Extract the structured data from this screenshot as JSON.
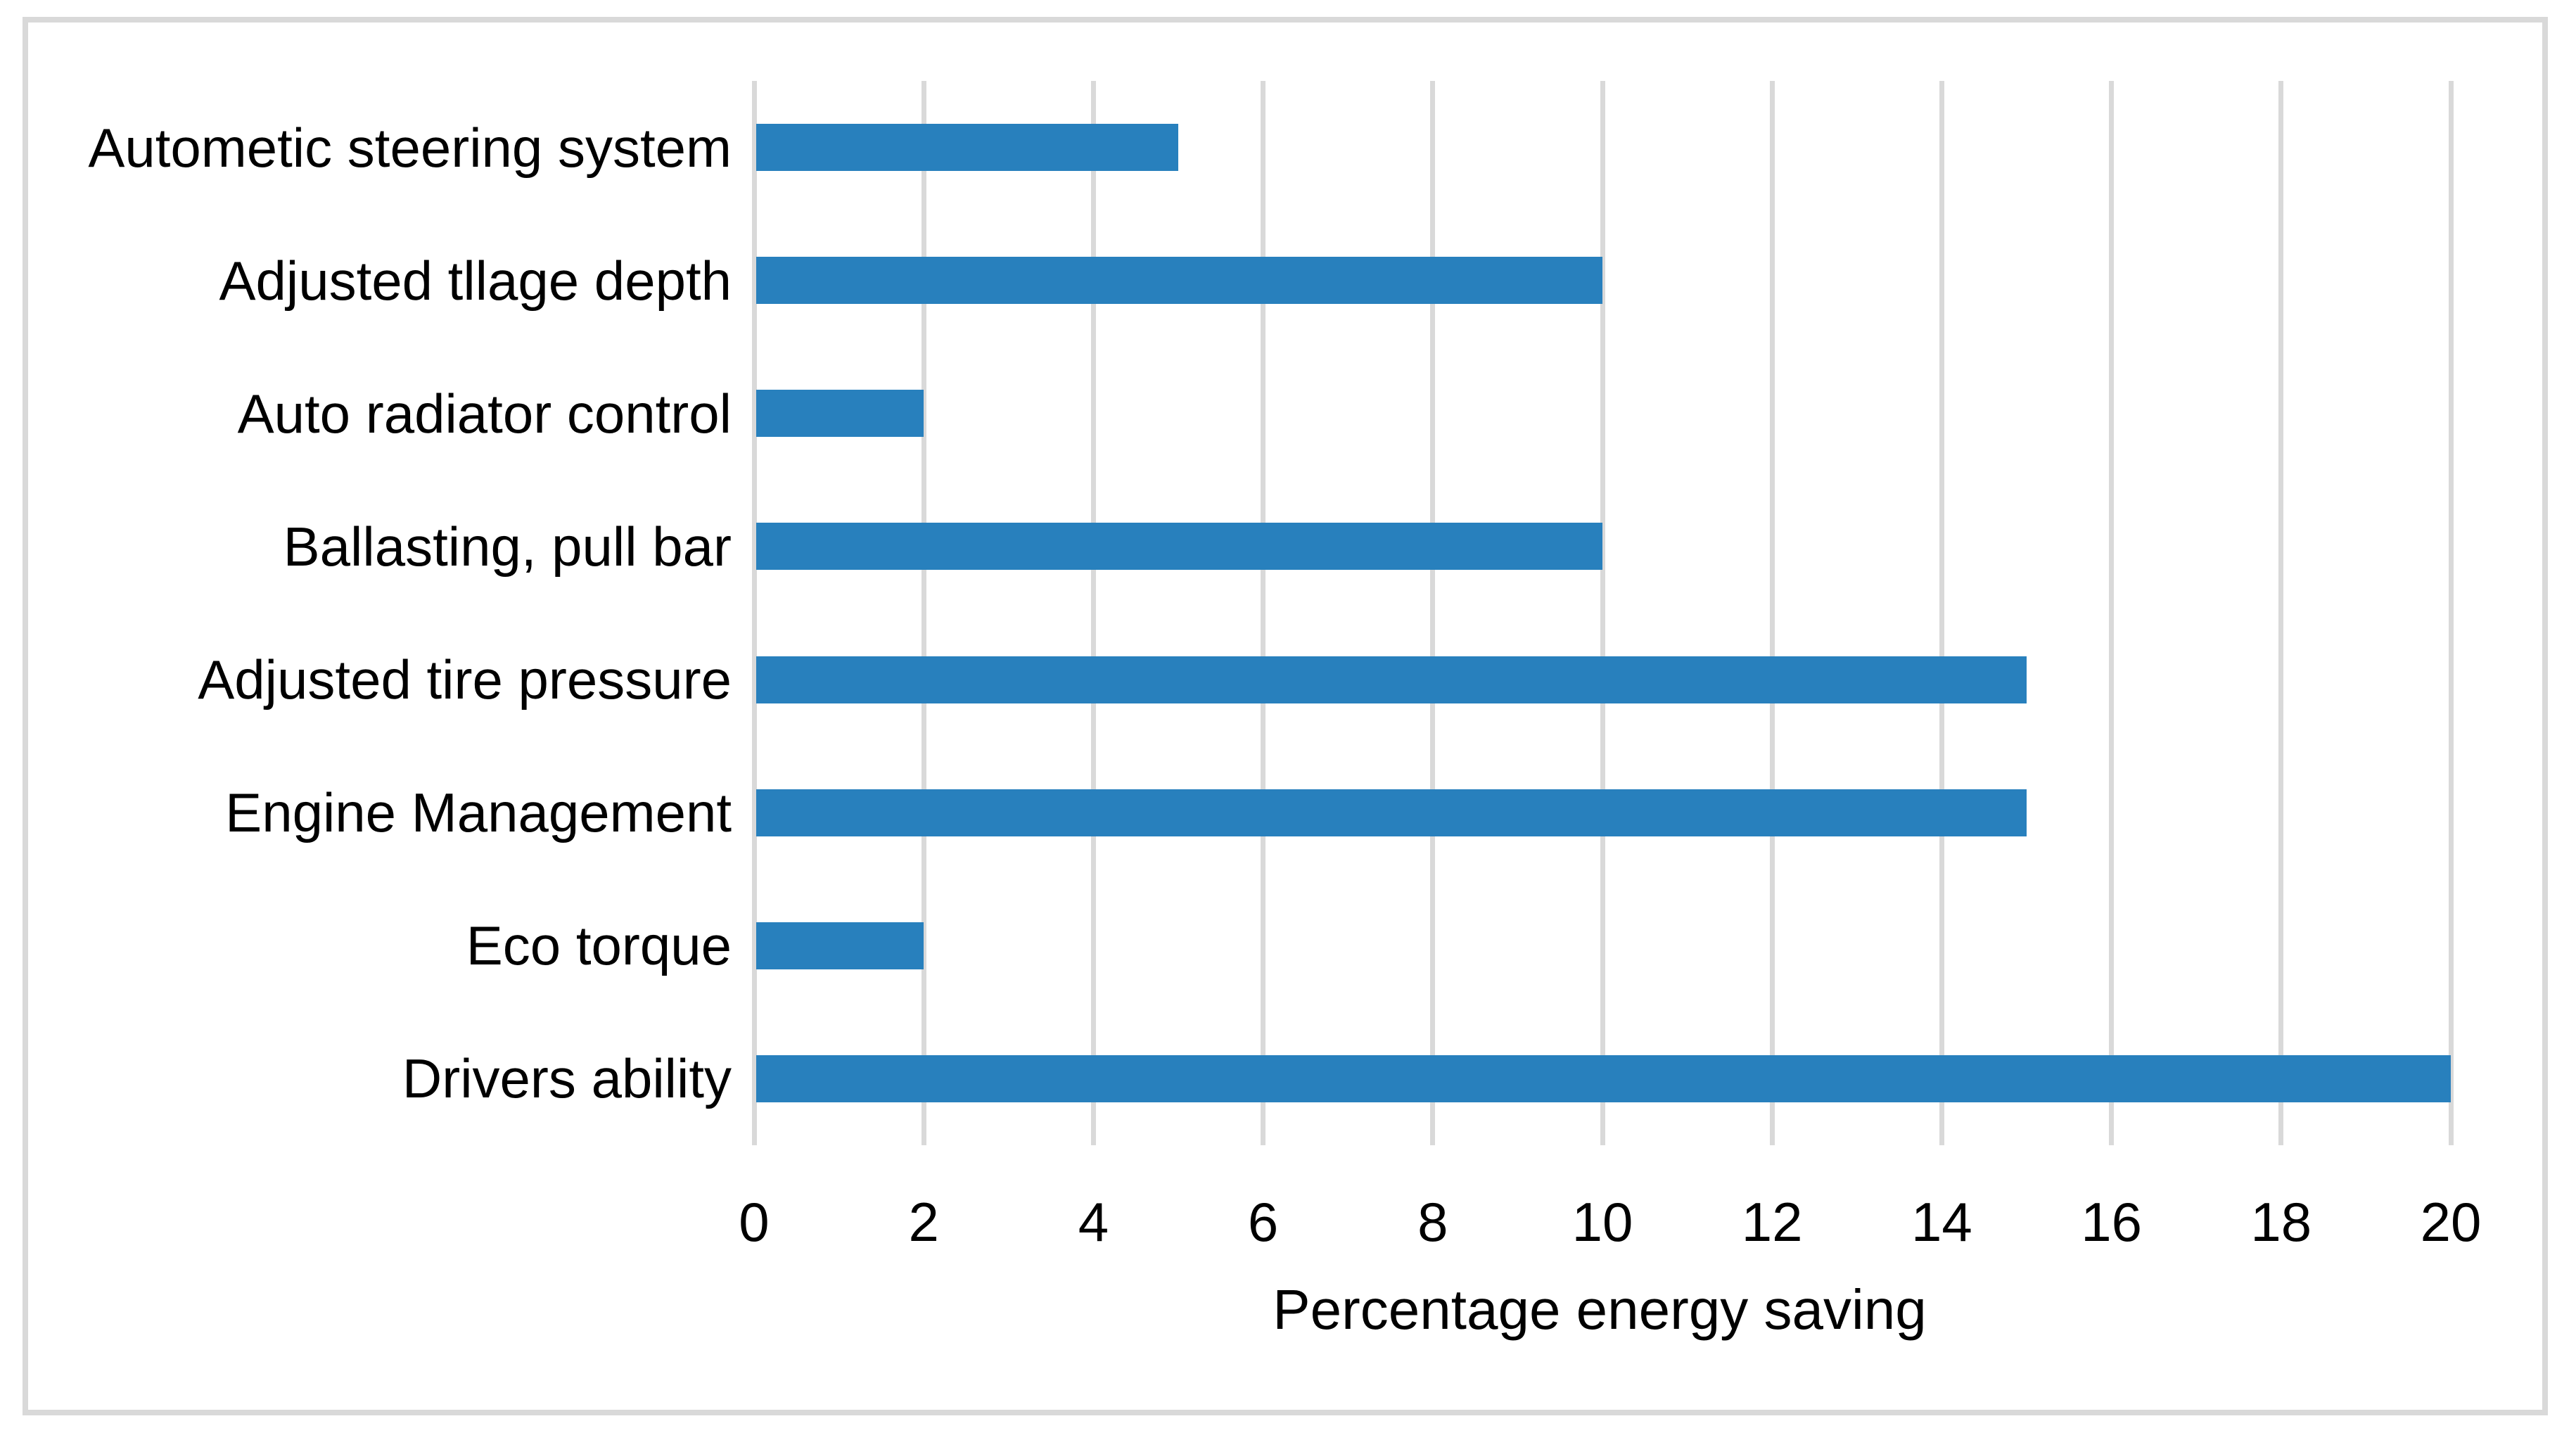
{
  "chart_data": {
    "type": "bar",
    "orientation": "horizontal",
    "title": "",
    "categories": [
      "Autometic steering system",
      "Adjusted tllage depth",
      "Auto radiator control",
      "Ballasting, pull bar",
      "Adjusted tire pressure",
      "Engine Management",
      "Eco torque",
      "Drivers ability"
    ],
    "values": [
      5,
      10,
      2,
      10,
      15,
      15,
      2,
      20
    ],
    "xlabel": "Percentage energy saving",
    "ylabel": "",
    "x_ticks": [
      0,
      2,
      4,
      6,
      8,
      10,
      12,
      14,
      16,
      18,
      20
    ],
    "xlim": [
      0,
      20
    ],
    "grid": "vertical-major-gridlines",
    "legend": "none",
    "bar_color": "#2880BD",
    "gridline_color": "#D9D9D9",
    "border_color": "#D9D9D9",
    "text_color": "#000000",
    "background_color": "#FFFFFF"
  }
}
